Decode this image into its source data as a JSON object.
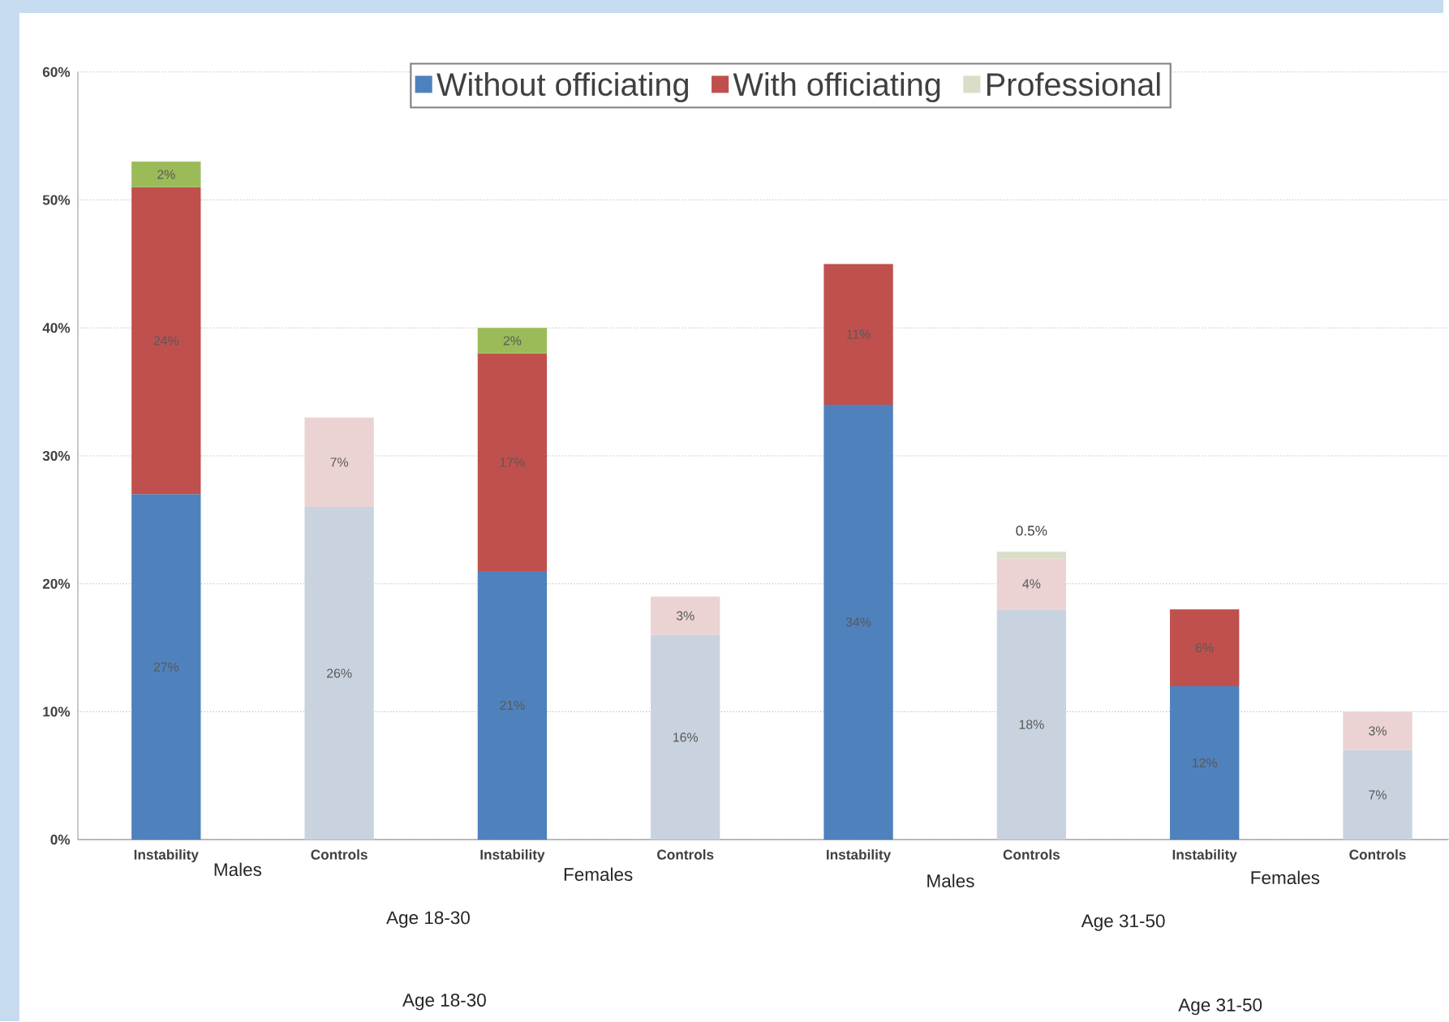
{
  "chart_data": {
    "type": "bar",
    "stacked": true,
    "categories": [
      "Instability",
      "Controls",
      "Instability",
      "Controls",
      "Instability",
      "Controls",
      "Instability",
      "Controls"
    ],
    "series": [
      {
        "name": "Without officiating",
        "color": "#4f81bd",
        "colors": [
          "#4f81bd",
          "#c9d3e0",
          "#4f81bd",
          "#c9d3e0",
          "#4f81bd",
          "#c9d3e0",
          "#4f81bd",
          "#c9d3e0"
        ],
        "values": [
          27,
          26,
          21,
          16,
          34,
          18,
          12,
          7
        ],
        "value_labels": [
          "27%",
          "26%",
          "21%",
          "16%",
          "34%",
          "18%",
          "12%",
          "7%"
        ]
      },
      {
        "name": "With officiating",
        "color": "#c0504d",
        "colors": [
          "#c0504d",
          "#ecd3d3",
          "#c0504d",
          "#ecd3d3",
          "#c0504d",
          "#ecd3d3",
          "#c0504d",
          "#ecd3d3"
        ],
        "values": [
          24,
          7,
          17,
          3,
          11,
          4,
          6,
          3
        ],
        "value_labels": [
          "24%",
          "7%",
          "17%",
          "3%",
          "11%",
          "4%",
          "6%",
          "3%"
        ]
      },
      {
        "name": "Professional",
        "color": "#d8dfc6",
        "colors": [
          "#9bbb59",
          "#d8dfc6",
          "#9bbb59",
          "#d8dfc6",
          "#9bbb59",
          "#d8dfc6",
          "#9bbb59",
          "#d8dfc6"
        ],
        "values": [
          2,
          null,
          2,
          null,
          null,
          0.5,
          null,
          null
        ],
        "value_labels": [
          "2%",
          null,
          "2%",
          null,
          null,
          "0.5%",
          null,
          null
        ]
      }
    ],
    "ylim": [
      0,
      60
    ],
    "yticks": [
      {
        "value": 0,
        "label": "0%"
      },
      {
        "value": 10,
        "label": "10%"
      },
      {
        "value": 20,
        "label": "20%"
      },
      {
        "value": 30,
        "label": "30%"
      },
      {
        "value": 40,
        "label": "40%"
      },
      {
        "value": 50,
        "label": "50%"
      },
      {
        "value": 60,
        "label": "60%"
      }
    ],
    "grid": "y",
    "legend": "top",
    "annotations": [
      "Males",
      "Females",
      "Males",
      "Females",
      "Age 18-30",
      "Age 31-50",
      "Age 18-30",
      "Age 31-50"
    ]
  }
}
